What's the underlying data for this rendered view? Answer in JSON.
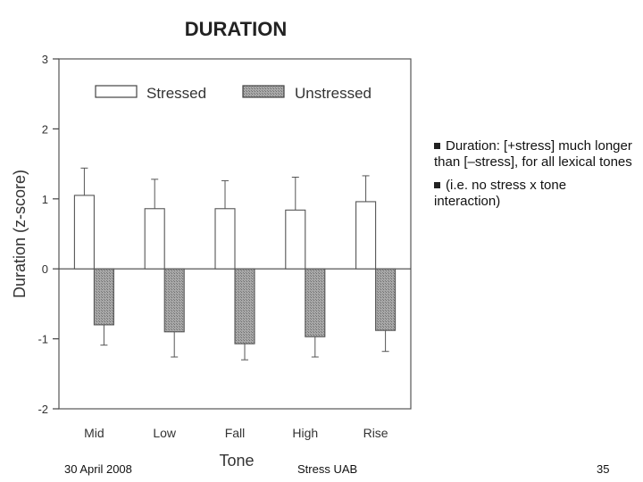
{
  "slide": {
    "bullets": [
      "Duration: [+stress] much longer than [–stress], for all lexical tones",
      "(i.e. no stress x tone interaction)"
    ],
    "bullet_icon": "square-bullet-icon",
    "footer": {
      "date": "30 April 2008",
      "center": "Stress UAB",
      "page": "35"
    }
  },
  "chart_data": {
    "type": "bar",
    "title": "DURATION",
    "xlabel": "Tone",
    "ylabel": "Duration (z-score)",
    "categories": [
      "Mid",
      "Low",
      "Fall",
      "High",
      "Rise"
    ],
    "ylim": [
      -2,
      3
    ],
    "yticks": [
      -2,
      -1,
      0,
      1,
      2,
      3
    ],
    "ytick_labels": [
      "-2",
      "-1",
      "0",
      "1",
      "2",
      "3"
    ],
    "legend_position": "top",
    "grid": false,
    "series": [
      {
        "name": "Stressed",
        "values": [
          1.05,
          0.86,
          0.86,
          0.84,
          0.96
        ],
        "error": [
          0.39,
          0.42,
          0.4,
          0.47,
          0.37
        ],
        "fill": "#ffffff"
      },
      {
        "name": "Unstressed",
        "values": [
          -0.8,
          -0.9,
          -1.07,
          -0.97,
          -0.88
        ],
        "error": [
          0.29,
          0.36,
          0.23,
          0.29,
          0.3
        ],
        "fill": "#9a9a9a"
      }
    ]
  }
}
